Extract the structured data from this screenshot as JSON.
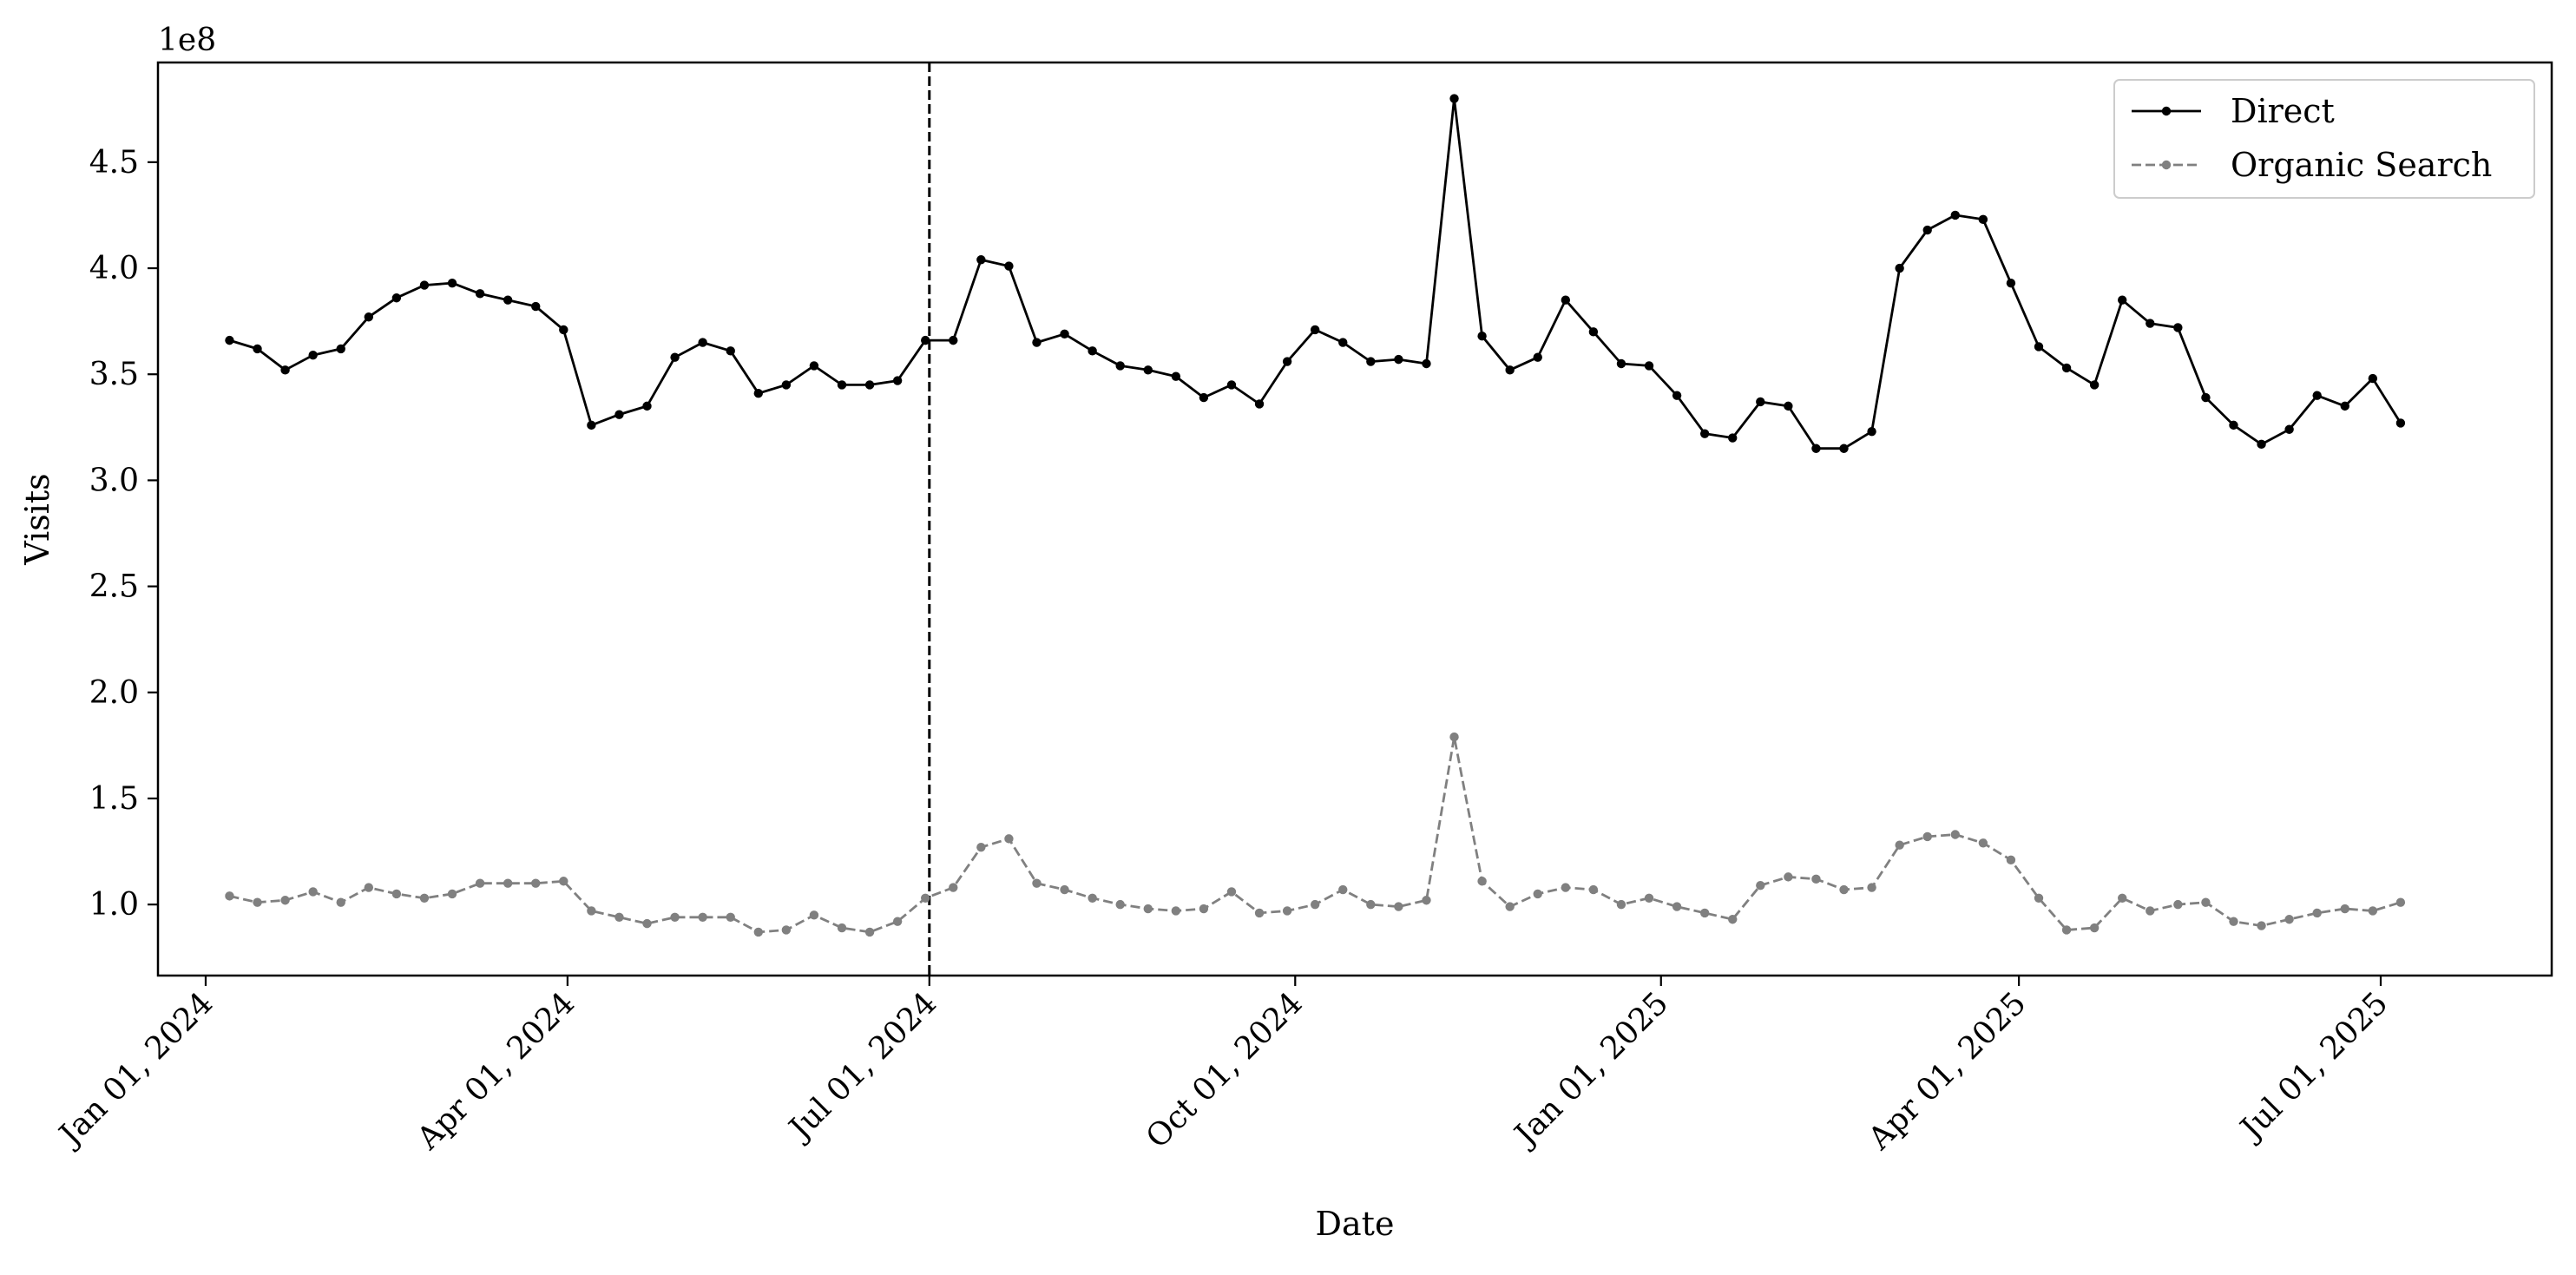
{
  "chart_data": {
    "type": "line",
    "xlabel": "Date",
    "ylabel": "Visits",
    "y_offset_label": "1e8",
    "y_multiplier": 100000000,
    "ylim": [
      0.665,
      4.97
    ],
    "xlim": [
      "2023-12-20",
      "2025-08-13"
    ],
    "x_ticks": [
      "2024-01-01",
      "2024-04-01",
      "2024-07-01",
      "2024-10-01",
      "2025-01-01",
      "2025-04-01",
      "2025-07-01"
    ],
    "x_tick_labels": [
      "Jan 01, 2024",
      "Apr 01, 2024",
      "Jul 01, 2024",
      "Oct 01, 2024",
      "Jan 01, 2025",
      "Apr 01, 2025",
      "Jul 01, 2025"
    ],
    "y_ticks": [
      1.0,
      1.5,
      2.0,
      2.5,
      3.0,
      3.5,
      4.0,
      4.5
    ],
    "y_tick_labels": [
      "1.0",
      "1.5",
      "2.0",
      "2.5",
      "3.0",
      "3.5",
      "4.0",
      "4.5"
    ],
    "vline": {
      "x": "2024-07-01",
      "style": "dashed",
      "color": "#000000"
    },
    "grid": false,
    "legend_position": "top-right",
    "x_start": "2024-01-07",
    "x_step_days": 7,
    "series": [
      {
        "name": "Direct",
        "color": "#000000",
        "linestyle": "solid",
        "marker": "circle",
        "values": [
          3.66,
          3.62,
          3.52,
          3.59,
          3.62,
          3.77,
          3.86,
          3.92,
          3.93,
          3.88,
          3.85,
          3.82,
          3.71,
          3.26,
          3.31,
          3.35,
          3.58,
          3.65,
          3.61,
          3.41,
          3.45,
          3.54,
          3.45,
          3.45,
          3.47,
          3.66,
          3.66,
          4.04,
          4.01,
          3.65,
          3.69,
          3.61,
          3.54,
          3.52,
          3.49,
          3.39,
          3.45,
          3.36,
          3.56,
          3.71,
          3.65,
          3.56,
          3.57,
          3.55,
          4.8,
          3.68,
          3.52,
          3.58,
          3.85,
          3.7,
          3.55,
          3.54,
          3.4,
          3.22,
          3.2,
          3.37,
          3.35,
          3.15,
          3.15,
          3.23,
          4.0,
          4.18,
          4.25,
          4.23,
          3.93,
          3.63,
          3.53,
          3.45,
          3.85,
          3.74,
          3.72,
          3.39,
          3.26,
          3.17,
          3.24,
          3.4,
          3.35,
          3.48,
          3.27
        ]
      },
      {
        "name": "Organic Search",
        "color": "#808080",
        "linestyle": "dashed",
        "marker": "circle",
        "values": [
          1.04,
          1.01,
          1.02,
          1.06,
          1.01,
          1.08,
          1.05,
          1.03,
          1.05,
          1.1,
          1.1,
          1.1,
          1.11,
          0.97,
          0.94,
          0.91,
          0.94,
          0.94,
          0.94,
          0.87,
          0.88,
          0.95,
          0.89,
          0.87,
          0.92,
          1.03,
          1.08,
          1.27,
          1.31,
          1.1,
          1.07,
          1.03,
          1.0,
          0.98,
          0.97,
          0.98,
          1.06,
          0.96,
          0.97,
          1.0,
          1.07,
          1.0,
          0.99,
          1.02,
          1.79,
          1.11,
          0.99,
          1.05,
          1.08,
          1.07,
          1.0,
          1.03,
          0.99,
          0.96,
          0.93,
          1.09,
          1.13,
          1.12,
          1.07,
          1.08,
          1.28,
          1.32,
          1.33,
          1.29,
          1.21,
          1.03,
          0.88,
          0.89,
          1.03,
          0.97,
          1.0,
          1.01,
          0.92,
          0.9,
          0.93,
          0.96,
          0.98,
          0.97,
          1.01
        ]
      }
    ]
  }
}
